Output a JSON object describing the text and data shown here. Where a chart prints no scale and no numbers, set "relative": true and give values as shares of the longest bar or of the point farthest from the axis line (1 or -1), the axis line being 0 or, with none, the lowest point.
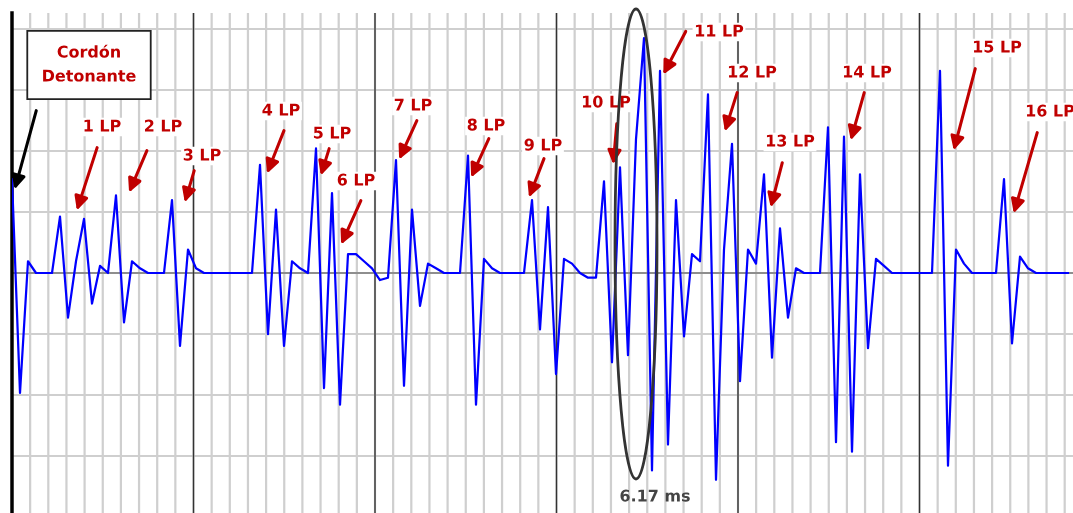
{
  "chart_data": {
    "type": "line",
    "relative": true,
    "grid": true,
    "categories": [
      null,
      null,
      null,
      null,
      null,
      null,
      null,
      null,
      null,
      null,
      null,
      null,
      null,
      null,
      null,
      null,
      null,
      null,
      null,
      null,
      null,
      null,
      null,
      null,
      null,
      null,
      null,
      null,
      null,
      null,
      null,
      null,
      null,
      null,
      null,
      null,
      null,
      null,
      null,
      null,
      null,
      null,
      null,
      null,
      null,
      null,
      null,
      null,
      null,
      null,
      null,
      null,
      null,
      null,
      null,
      null,
      null,
      null,
      null,
      null,
      null,
      null,
      null,
      null,
      null,
      null,
      null,
      null,
      null,
      null,
      null,
      null,
      null,
      null,
      null,
      null,
      null,
      null,
      null,
      null,
      null,
      null,
      null,
      null,
      null,
      null,
      null,
      null,
      null,
      null,
      null,
      null,
      null,
      null,
      null,
      null,
      null,
      null,
      null,
      null,
      null,
      null,
      null,
      null,
      null,
      null,
      null,
      null,
      null,
      null,
      null,
      null,
      null,
      null,
      null,
      null,
      null,
      null,
      null,
      null,
      null,
      null,
      null,
      null,
      null,
      null,
      null,
      null,
      null,
      null,
      null,
      null,
      null
    ],
    "series": [
      {
        "color": "#0000ff",
        "values": [
          0.4,
          -0.51,
          0.05,
          0,
          0,
          0,
          0.24,
          -0.19,
          0.05,
          0.23,
          -0.13,
          0.03,
          0,
          0.33,
          -0.21,
          0.05,
          0.02,
          0,
          0,
          0,
          0.31,
          -0.31,
          0.1,
          0.02,
          0,
          0,
          0,
          0,
          0,
          0,
          0,
          0.46,
          -0.26,
          0.27,
          -0.31,
          0.05,
          0.02,
          0,
          0.53,
          -0.49,
          0.34,
          -0.56,
          0.08,
          0.08,
          0.05,
          0.02,
          -0.03,
          -0.02,
          0.48,
          -0.48,
          0.27,
          -0.14,
          0.04,
          0.02,
          0,
          0,
          0,
          0.5,
          -0.56,
          0.06,
          0.02,
          0,
          0,
          0,
          0,
          0.31,
          -0.24,
          0.28,
          -0.43,
          0.06,
          0.04,
          0,
          -0.02,
          -0.02,
          0.39,
          -0.38,
          0.45,
          -0.35,
          0.57,
          1,
          -0.84,
          0.86,
          -0.73,
          0.31,
          -0.27,
          0.08,
          0.05,
          0.76,
          -0.88,
          0.1,
          0.55,
          -0.46,
          0.1,
          0.04,
          0.42,
          -0.36,
          0.19,
          -0.19,
          0.02,
          0,
          0,
          0,
          0.62,
          -0.72,
          0.58,
          -0.76,
          0.42,
          -0.32,
          0.06,
          0.03,
          0,
          0,
          0,
          0,
          0,
          0,
          0.86,
          -0.82,
          0.1,
          0.04,
          0,
          0,
          0,
          0,
          0.4,
          -0.3,
          0.07,
          0.02,
          0,
          0,
          0,
          0,
          0
        ]
      }
    ],
    "annotations": [
      "Cordón\nDetonante",
      "1 LP",
      "2 LP",
      "3 LP",
      "4 LP",
      "5 LP",
      "6 LP",
      "7 LP",
      "8 LP",
      "9 LP",
      "10 LP",
      "11 LP",
      "12 LP",
      "13 LP",
      "14 LP",
      "15 LP",
      "16 LP",
      "6.17 ms"
    ]
  }
}
